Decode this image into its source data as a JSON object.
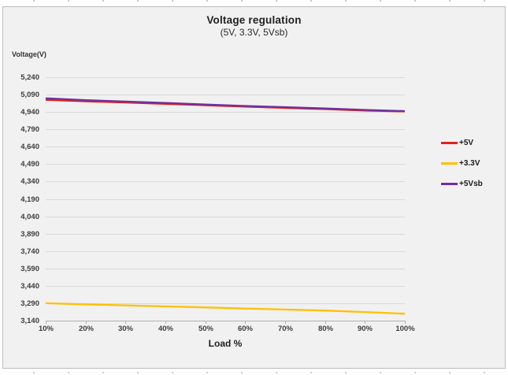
{
  "chart_data": {
    "type": "line",
    "title": "Voltage regulation",
    "subtitle": "(5V, 3.3V, 5Vsb)",
    "xlabel": "Load %",
    "ylabel": "Voltage(V)",
    "categories": [
      "10%",
      "20%",
      "30%",
      "40%",
      "50%",
      "60%",
      "70%",
      "80%",
      "90%",
      "100%"
    ],
    "y_ticks": [
      "5,240",
      "5,090",
      "4,940",
      "4,790",
      "4,640",
      "4,490",
      "4,340",
      "4,190",
      "4,040",
      "3,890",
      "3,740",
      "3,590",
      "3,440",
      "3,290",
      "3,140"
    ],
    "ylim": [
      3140,
      5240
    ],
    "y_tick_step": 150,
    "grid": "horizontal-only",
    "legend_position": "right",
    "series": [
      {
        "name": "+5V",
        "color": "#e32119",
        "values": [
          5045,
          5032,
          5022,
          5010,
          4998,
          4986,
          4975,
          4965,
          4952,
          4945
        ]
      },
      {
        "name": "+3.3V",
        "color": "#ffc000",
        "values": [
          3290,
          3281,
          3272,
          3263,
          3254,
          3245,
          3236,
          3227,
          3214,
          3200
        ]
      },
      {
        "name": "+5Vsb",
        "color": "#7030a0",
        "values": [
          5058,
          5042,
          5030,
          5018,
          5005,
          4992,
          4982,
          4970,
          4958,
          4948
        ]
      }
    ]
  },
  "colors": {
    "panel_background": "#f1f1f1",
    "panel_border": "#bdbdbd",
    "gridline": "#d9d9d9",
    "axis_line": "#b0b0b0",
    "tick_text": "#3d3d3d"
  }
}
